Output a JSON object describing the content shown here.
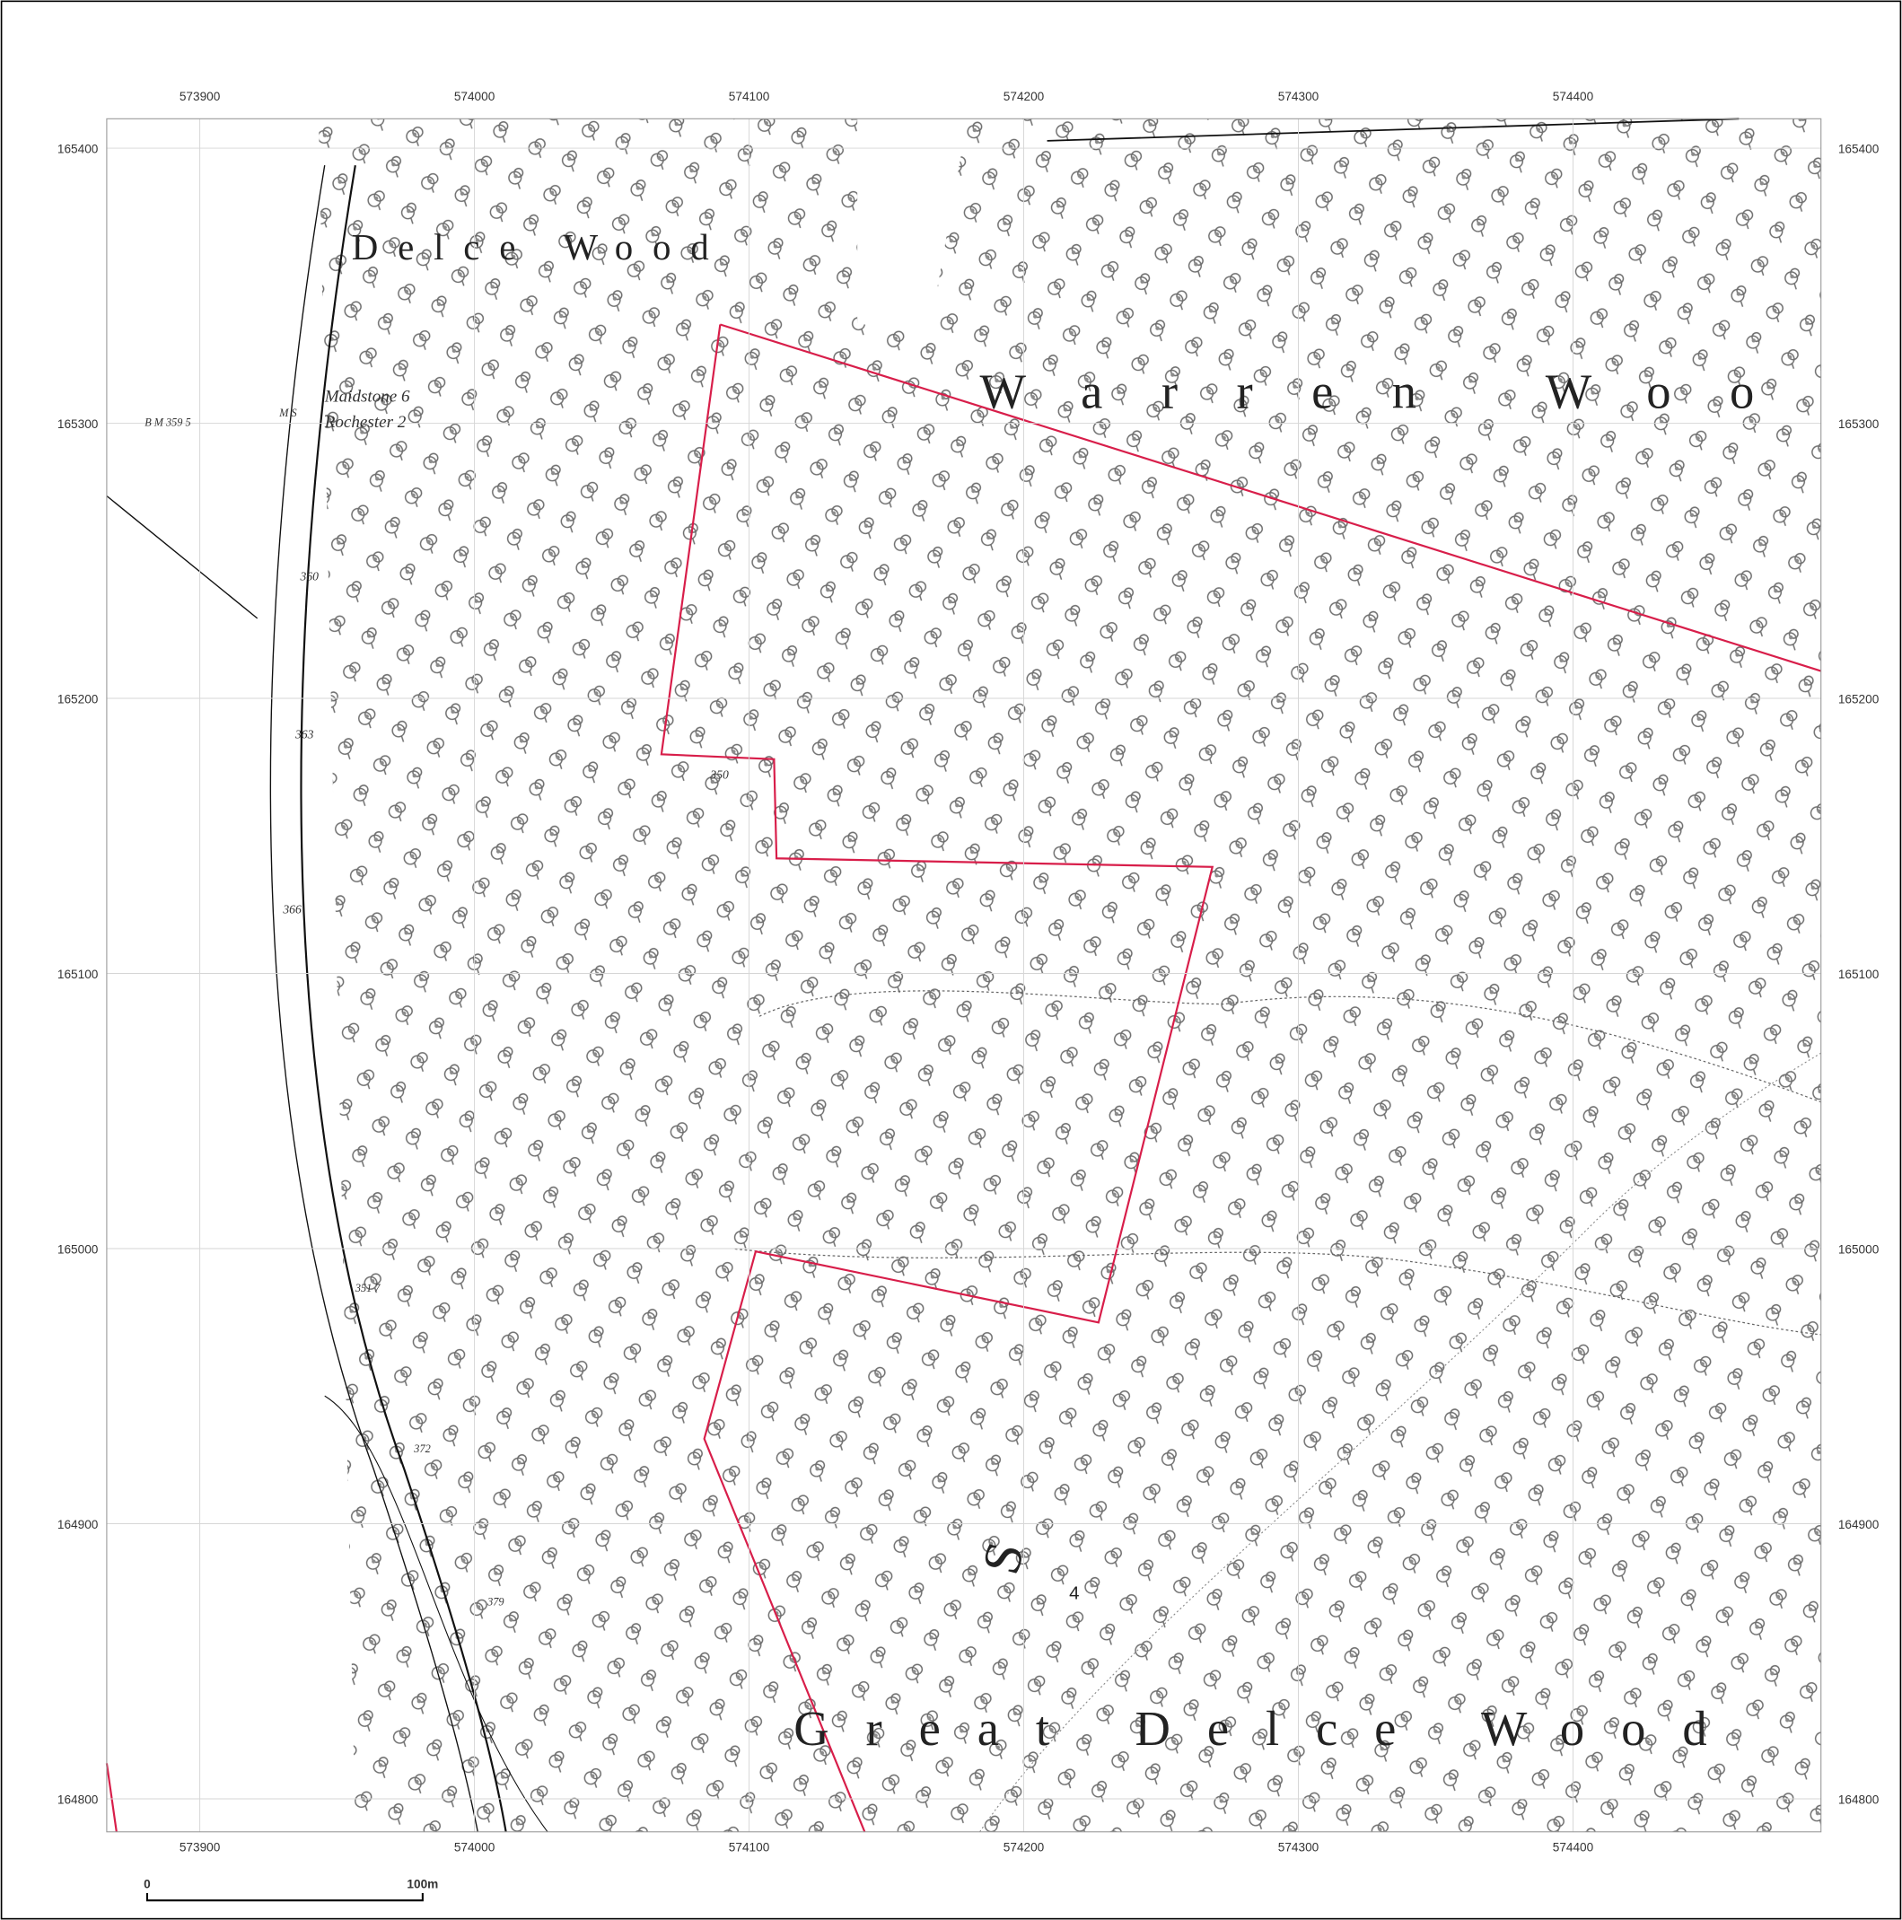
{
  "map": {
    "eastings": [
      573900,
      574000,
      574100,
      574200,
      574300,
      574400
    ],
    "northings": [
      165400,
      165300,
      165200,
      165100,
      165000,
      164900,
      164800
    ],
    "place_names": [
      "Delce Wood",
      "Warren Woo",
      "Great Delce Wood",
      "S",
      "4"
    ],
    "annotations": [
      "Maidstone 6",
      "Rochester 2",
      "B M 359 5",
      "M S",
      "360",
      "363",
      "366",
      "350",
      "351 7",
      "372",
      "379"
    ],
    "scale_bar": {
      "start_label": "0",
      "end_label": "100m"
    }
  }
}
